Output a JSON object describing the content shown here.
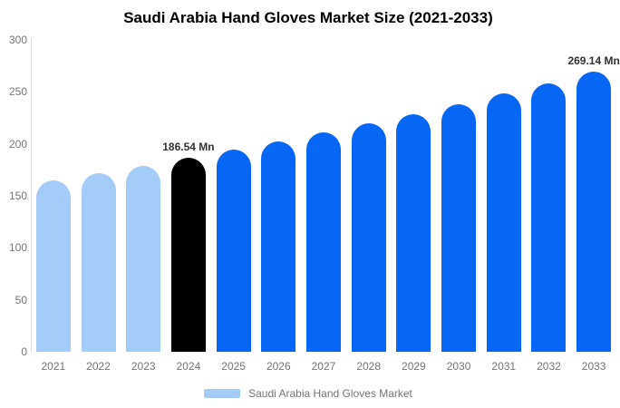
{
  "title": "Saudi Arabia Hand Gloves Market Size (2021-2033)",
  "legend": {
    "label": "Saudi Arabia Hand Gloves Market",
    "swatch_color": "#a4ccf8"
  },
  "colors": {
    "historical_bar": "#a4ccf8",
    "base_year_bar": "#000000",
    "forecast_bar": "#0667f6",
    "axis_line": "#dddddd",
    "tick_text": "#757575",
    "annotation_text": "#333333",
    "title_text": "#000000",
    "background": "#ffffff"
  },
  "chart_data": {
    "type": "bar",
    "title": "Saudi Arabia Hand Gloves Market Size (2021-2033)",
    "categories": [
      "2021",
      "2022",
      "2023",
      "2024",
      "2025",
      "2026",
      "2027",
      "2028",
      "2029",
      "2030",
      "2031",
      "2032",
      "2033"
    ],
    "values": [
      165.08,
      171.95,
      179.1,
      186.54,
      194.3,
      202.39,
      210.81,
      219.58,
      228.72,
      238.24,
      248.15,
      258.47,
      269.14
    ],
    "unit": "Mn",
    "bar_colors": [
      "#a4ccf8",
      "#a4ccf8",
      "#a4ccf8",
      "#000000",
      "#0667f6",
      "#0667f6",
      "#0667f6",
      "#0667f6",
      "#0667f6",
      "#0667f6",
      "#0667f6",
      "#0667f6",
      "#0667f6"
    ],
    "annotations": [
      {
        "category": "2024",
        "text": "186.54 Mn"
      },
      {
        "category": "2033",
        "text": "269.14 Mn"
      }
    ],
    "xlabel": "",
    "ylabel": "",
    "ylim": [
      0,
      300
    ],
    "yticks": [
      0,
      50,
      100,
      150,
      200,
      250,
      300
    ],
    "grid": false,
    "legend_entries": [
      "Saudi Arabia Hand Gloves Market"
    ],
    "legend_position": "bottom"
  }
}
